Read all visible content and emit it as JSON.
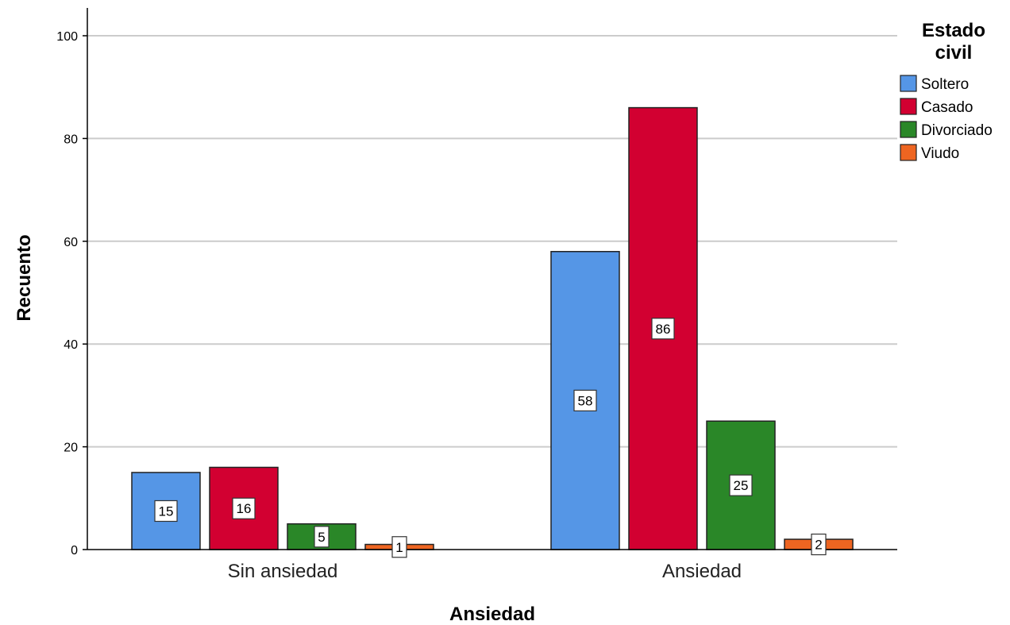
{
  "chart_data": {
    "type": "bar",
    "title": "",
    "xlabel": "Ansiedad",
    "ylabel": "Recuento",
    "categories": [
      "Sin ansiedad",
      "Ansiedad"
    ],
    "ylim": [
      0,
      100
    ],
    "yticks": [
      0,
      20,
      40,
      60,
      80,
      100
    ],
    "grid": true,
    "legend": {
      "title": "Estado civil",
      "position": "top-right"
    },
    "series": [
      {
        "name": "Soltero",
        "color": "#5596e6",
        "values": [
          15,
          58
        ]
      },
      {
        "name": "Casado",
        "color": "#d20031",
        "values": [
          16,
          86
        ]
      },
      {
        "name": "Divorciado",
        "color": "#2a8728",
        "values": [
          5,
          25
        ]
      },
      {
        "name": "Viudo",
        "color": "#ee6521",
        "values": [
          1,
          2
        ]
      }
    ]
  }
}
